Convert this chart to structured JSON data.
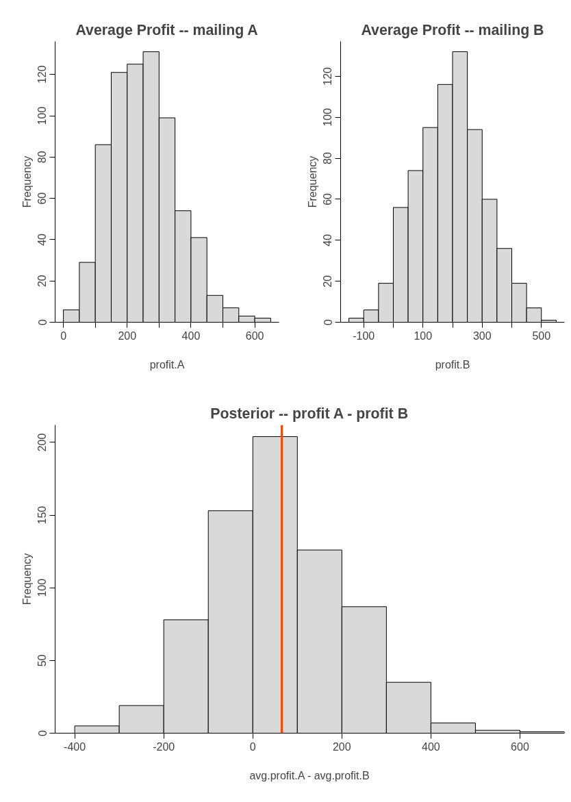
{
  "chart_data": [
    {
      "type": "histogram",
      "title": "Average Profit -- mailing A",
      "xlabel": "profit.A",
      "ylabel": "Frequency",
      "color": "#d9d9d9",
      "bins": [
        0,
        50,
        100,
        150,
        200,
        250,
        300,
        350,
        400,
        450,
        500,
        550,
        600,
        650
      ],
      "values": [
        6,
        29,
        86,
        121,
        125,
        131,
        99,
        54,
        41,
        13,
        7,
        3,
        2
      ],
      "xlim": [
        -26,
        676
      ],
      "ylim": [
        0,
        136
      ],
      "xticks": [
        0,
        {
          "value": 100,
          "label": null
        },
        200,
        {
          "value": 300,
          "label": null
        },
        400,
        {
          "value": 500,
          "label": null
        },
        600
      ],
      "yticks": [
        0,
        20,
        40,
        60,
        80,
        100,
        120
      ]
    },
    {
      "type": "histogram",
      "title": "Average Profit -- mailing B",
      "xlabel": "profit.B",
      "ylabel": "Frequency",
      "color": "#d9d9d9",
      "bins": [
        -150,
        -100,
        -50,
        0,
        50,
        100,
        150,
        200,
        250,
        300,
        350,
        400,
        450,
        500,
        550
      ],
      "values": [
        2,
        6,
        19,
        56,
        74,
        95,
        116,
        132,
        94,
        60,
        36,
        19,
        7,
        1
      ],
      "xlim": [
        -178,
        578
      ],
      "ylim": [
        0,
        137
      ],
      "xticks": [
        -100,
        {
          "value": 0,
          "label": null
        },
        100,
        {
          "value": 200,
          "label": null
        },
        300,
        {
          "value": 400,
          "label": null
        },
        500
      ],
      "yticks": [
        0,
        20,
        40,
        60,
        80,
        100,
        120
      ]
    },
    {
      "type": "histogram",
      "title": "Posterior -- profit A - profit B",
      "xlabel": "avg.profit.A - avg.profit.B",
      "ylabel": "Frequency",
      "color": "#d9d9d9",
      "bins": [
        -400,
        -300,
        -200,
        -100,
        0,
        100,
        200,
        300,
        400,
        500,
        600,
        700
      ],
      "values": [
        5,
        19,
        78,
        153,
        204,
        126,
        87,
        35,
        7,
        2,
        1
      ],
      "xlim": [
        -444,
        700
      ],
      "ylim": [
        0,
        212
      ],
      "xticks": [
        -400,
        -200,
        0,
        200,
        400,
        600
      ],
      "yticks": [
        0,
        50,
        100,
        150,
        200
      ],
      "ref_lines": [
        {
          "axis": "x",
          "value": 65,
          "color": "#ff4500"
        }
      ]
    }
  ]
}
